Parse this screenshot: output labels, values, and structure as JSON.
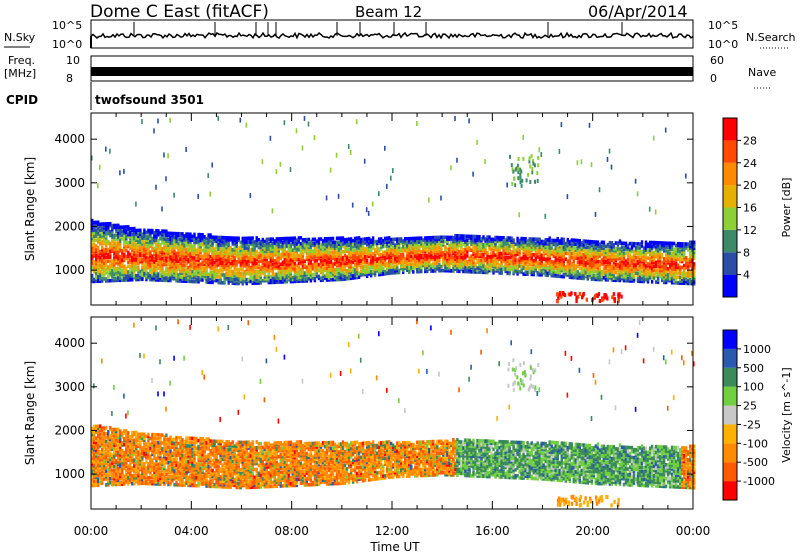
{
  "header": {
    "title": "Dome C East (fitACF)",
    "beam": "Beam 12",
    "date": "06/Apr/2014"
  },
  "strip": {
    "nsky_label": "N.Sky",
    "nsky_hi": "10^5",
    "nsky_lo": "10^0",
    "nsearch_label": "N.Search",
    "freq_label_1": "Freq.",
    "freq_label_2": "[MHz]",
    "freq_tick_hi": "10",
    "freq_tick_lo": "8",
    "nave_label": "Nave",
    "nave_hi": "60",
    "nave_lo": "0",
    "cpid_label": "CPID",
    "cpid_value": "twofsound 3501"
  },
  "colors": {
    "power": [
      "#0000ff",
      "#2a4ea8",
      "#3d8a6a",
      "#8dd036",
      "#e6b000",
      "#ff8a00",
      "#ff4a00",
      "#ff0000"
    ],
    "velocity": [
      "#ff0000",
      "#ff5a00",
      "#ff8c00",
      "#ffb000",
      "#c8c8c8",
      "#70d040",
      "#3a8a5a",
      "#2a5ab0",
      "#0000ff"
    ]
  },
  "chart_data": [
    {
      "type": "heatmap",
      "panel": "power",
      "xlabel": "Time UT",
      "ylabel": "Slant Range [km]",
      "x_ticks": [
        "00:00",
        "04:00",
        "08:00",
        "12:00",
        "16:00",
        "20:00",
        "00:00"
      ],
      "y_ticks": [
        1000,
        2000,
        3000,
        4000
      ],
      "ylim": [
        200,
        4600
      ],
      "xlim_hours": [
        0,
        24
      ],
      "colorbar_label": "Power [dB]",
      "colorbar_ticks": [
        4,
        8,
        12,
        16,
        20,
        24,
        28
      ],
      "scatter_band_km": [
        {
          "hour": 0,
          "lo": 700,
          "hi": 2100
        },
        {
          "hour": 2,
          "lo": 750,
          "hi": 1900
        },
        {
          "hour": 4,
          "lo": 700,
          "hi": 1800
        },
        {
          "hour": 6,
          "lo": 650,
          "hi": 1700
        },
        {
          "hour": 8,
          "lo": 700,
          "hi": 1700
        },
        {
          "hour": 10,
          "lo": 750,
          "hi": 1700
        },
        {
          "hour": 12,
          "lo": 900,
          "hi": 1700
        },
        {
          "hour": 14,
          "lo": 950,
          "hi": 1750
        },
        {
          "hour": 16,
          "lo": 900,
          "hi": 1750
        },
        {
          "hour": 18,
          "lo": 850,
          "hi": 1700
        },
        {
          "hour": 20,
          "lo": 750,
          "hi": 1650
        },
        {
          "hour": 22,
          "lo": 700,
          "hi": 1600
        },
        {
          "hour": 24,
          "lo": 650,
          "hi": 1600
        }
      ]
    },
    {
      "type": "heatmap",
      "panel": "velocity",
      "xlabel": "Time UT",
      "ylabel": "Slant Range [km]",
      "x_ticks": [
        "00:00",
        "04:00",
        "08:00",
        "12:00",
        "16:00",
        "20:00",
        "00:00"
      ],
      "y_ticks": [
        1000,
        2000,
        3000,
        4000
      ],
      "ylim": [
        200,
        4600
      ],
      "xlim_hours": [
        0,
        24
      ],
      "colorbar_label": "Velocity [m s^-1]",
      "colorbar_ticks": [
        1000,
        500,
        100,
        25,
        -25,
        -100,
        -500,
        -1000
      ]
    }
  ]
}
